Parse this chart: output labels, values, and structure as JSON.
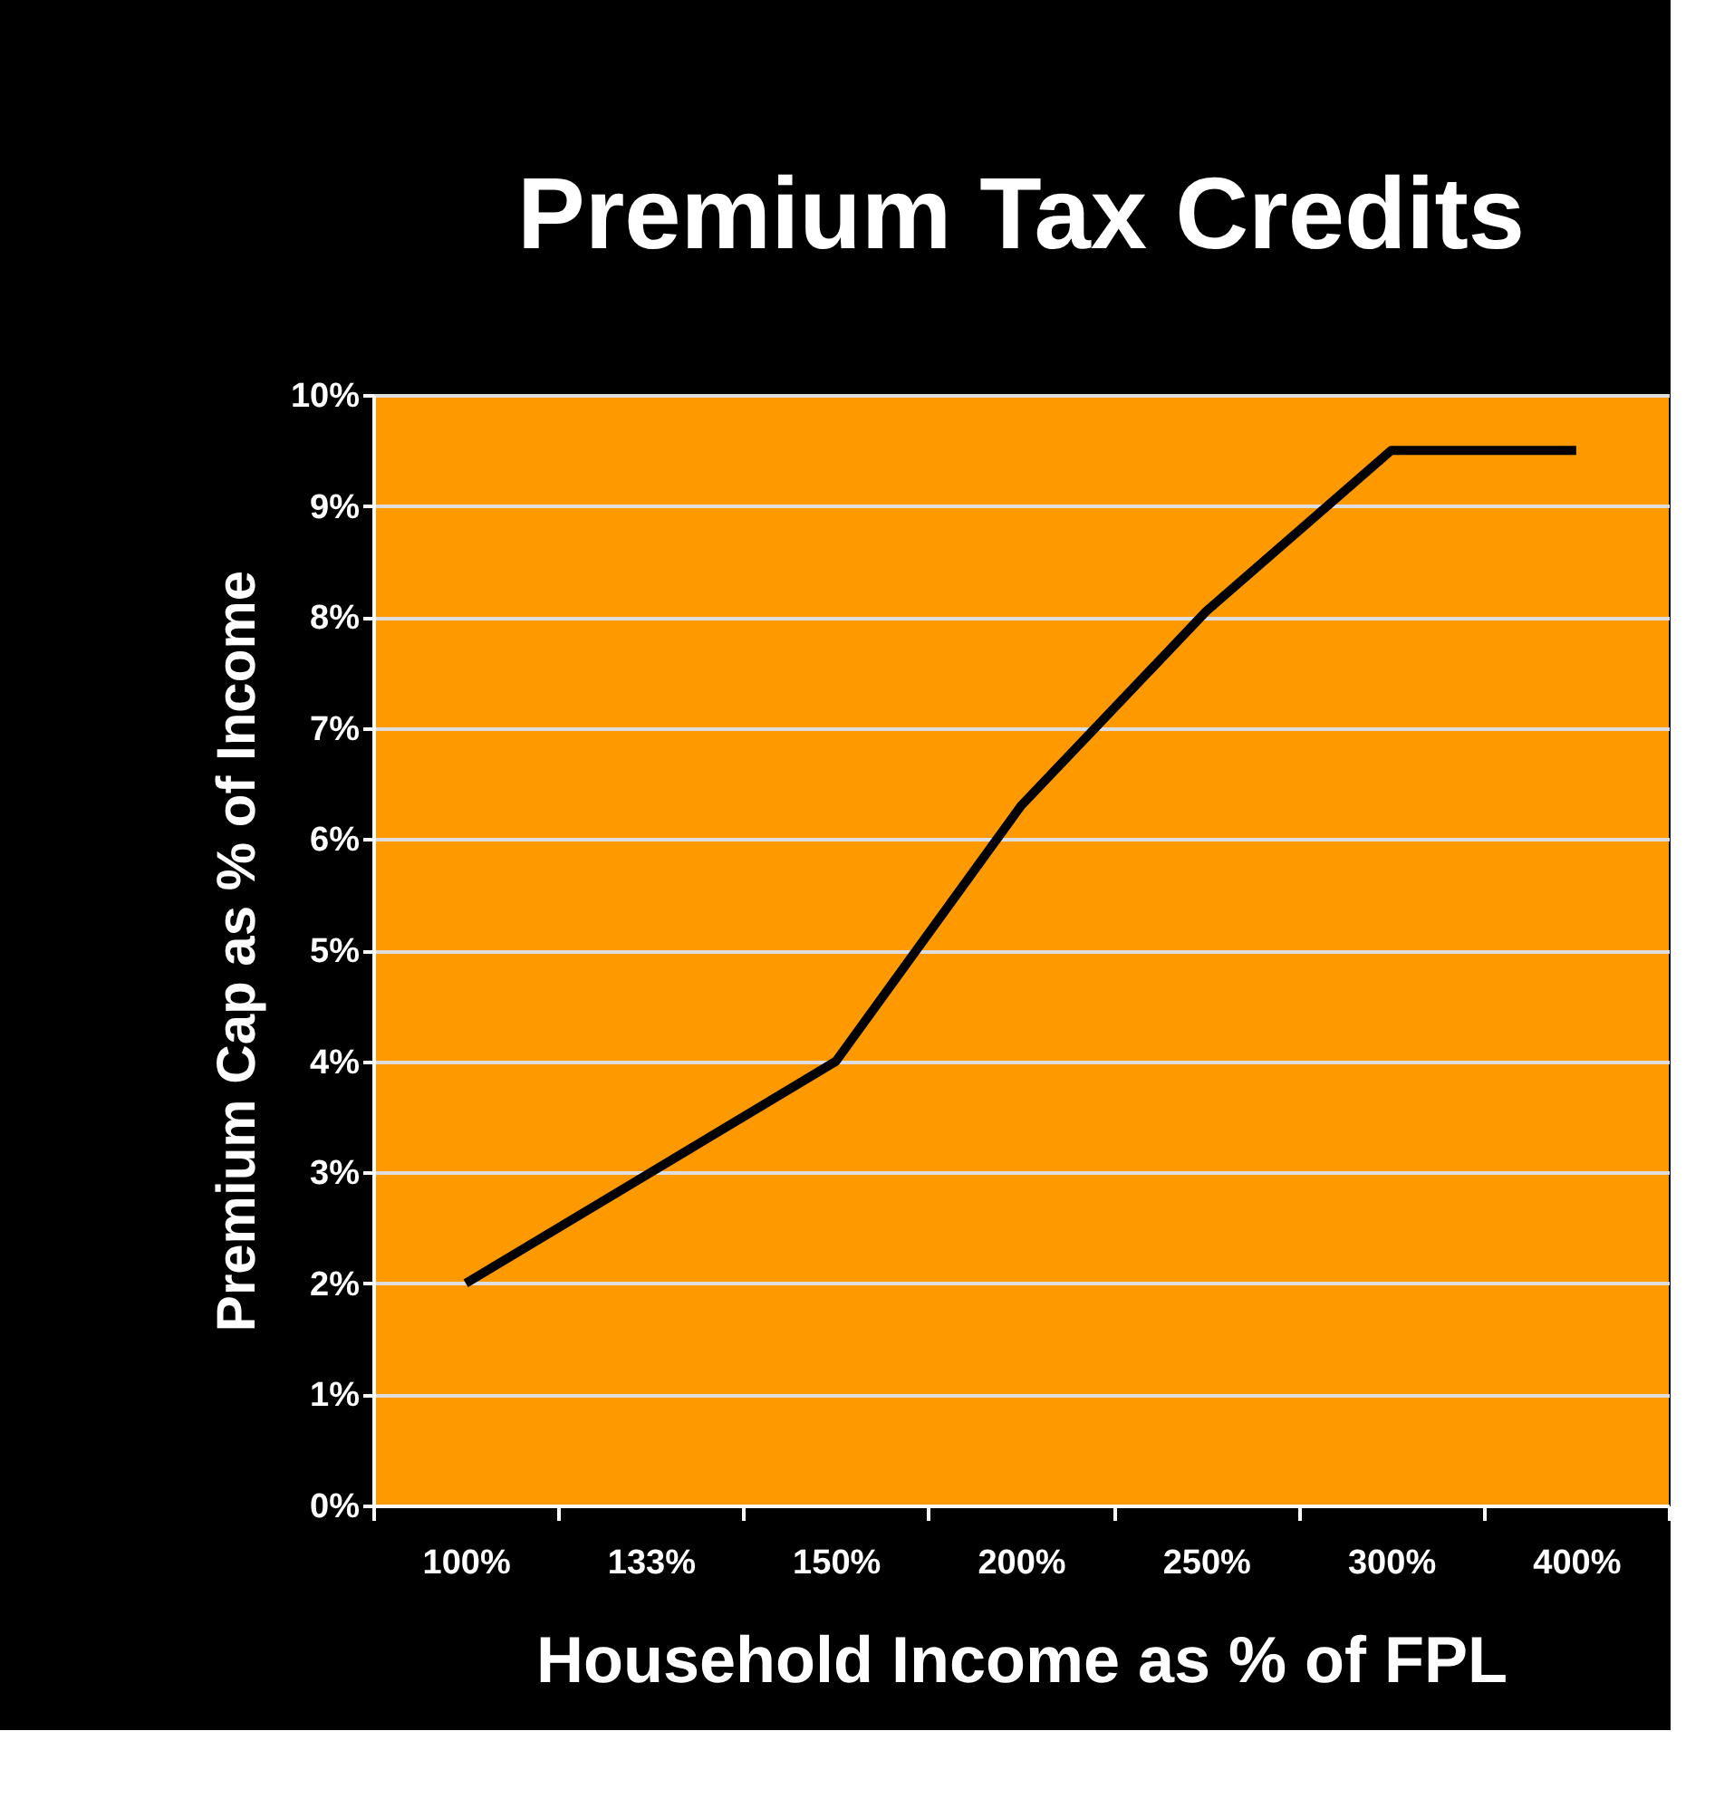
{
  "chart_data": {
    "type": "line",
    "title": "Premium Tax Credits",
    "xlabel": "Household Income as % of FPL",
    "ylabel": "Premium Cap as % of Income",
    "categories": [
      "100%",
      "133%",
      "150%",
      "200%",
      "250%",
      "300%",
      "400%"
    ],
    "series": [
      {
        "color": "#000000",
        "values": [
          2.0,
          3.0,
          4.0,
          6.3,
          8.05,
          9.5,
          9.5
        ]
      }
    ],
    "ylim": [
      0,
      10
    ],
    "yticks": [
      {
        "value": 0,
        "label": "0%"
      },
      {
        "value": 1,
        "label": "1%"
      },
      {
        "value": 2,
        "label": "2%"
      },
      {
        "value": 3,
        "label": "3%"
      },
      {
        "value": 4,
        "label": "4%"
      },
      {
        "value": 5,
        "label": "5%"
      },
      {
        "value": 6,
        "label": "6%"
      },
      {
        "value": 7,
        "label": "7%"
      },
      {
        "value": 8,
        "label": "8%"
      },
      {
        "value": 9,
        "label": "9%"
      },
      {
        "value": 10,
        "label": "10%"
      }
    ],
    "grid": "y",
    "marker": "none",
    "line_style": "solid"
  }
}
